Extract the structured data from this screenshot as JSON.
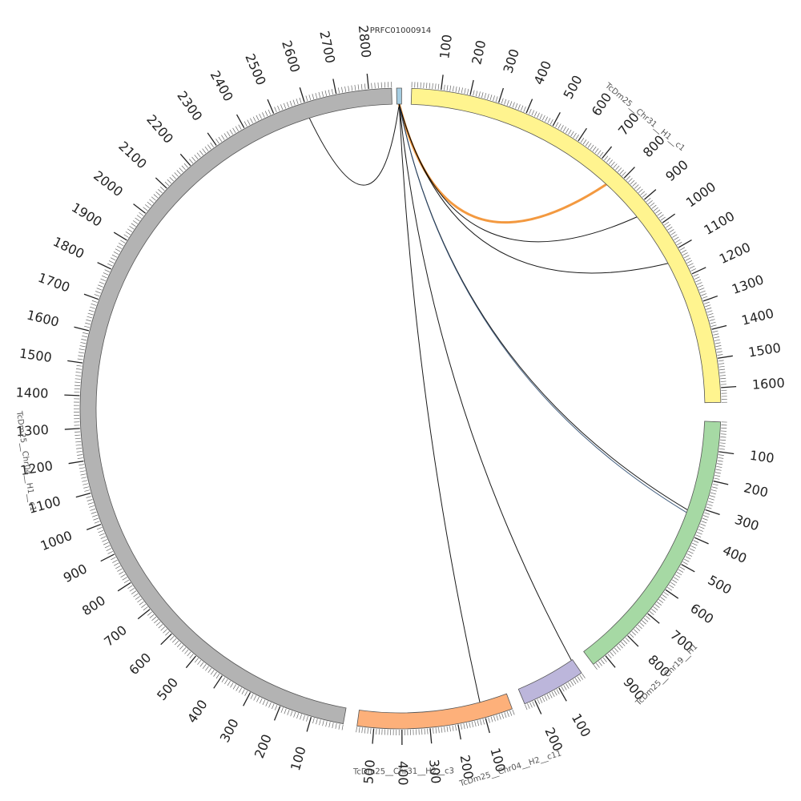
{
  "diagram": {
    "type": "circos",
    "segments": [
      {
        "id": "PRFC",
        "name": "PRFC01000914",
        "length": 30,
        "color": "#a6cee3",
        "ticks": []
      },
      {
        "id": "c31h1",
        "name": "TcDm25__Chr31__H1__c1",
        "length": 1650,
        "color": "#fff48f",
        "ticks": [
          "100",
          "200",
          "300",
          "400",
          "500",
          "600",
          "700",
          "800",
          "900",
          "1000",
          "1100",
          "1200",
          "1300",
          "1400",
          "1500",
          "1600"
        ]
      },
      {
        "id": "c19h1",
        "name": "TcDm25__Chr19__H1",
        "length": 950,
        "color": "#a6d9a4",
        "ticks": [
          "100",
          "200",
          "300",
          "400",
          "500",
          "600",
          "700",
          "800",
          "900"
        ]
      },
      {
        "id": "c04h2",
        "name": "TcDm25__Chr04__H2__c11",
        "length": 240,
        "color": "#bcb6db",
        "ticks": [
          "100",
          "200"
        ]
      },
      {
        "id": "c31h2",
        "name": "TcDm25__Chr31__H2__c3",
        "length": 560,
        "color": "#fdb07a",
        "ticks": [
          "100",
          "200",
          "300",
          "400",
          "500"
        ]
      },
      {
        "id": "c04h1",
        "name": "TcDm25__Chr04__H1__c1",
        "length": 2870,
        "color": "#b3b3b3",
        "ticks": [
          "100",
          "200",
          "300",
          "400",
          "500",
          "600",
          "700",
          "800",
          "900",
          "1000",
          "1100",
          "1200",
          "1300",
          "1400",
          "1500",
          "1600",
          "1700",
          "1800",
          "1900",
          "2000",
          "2100",
          "2200",
          "2300",
          "2400",
          "2500",
          "2600",
          "2700",
          "2800"
        ]
      }
    ],
    "links": [
      {
        "from": "PRFC",
        "to": "c04h1",
        "to_pos": 2600,
        "color": "#000000",
        "width": 1
      },
      {
        "from": "PRFC",
        "to": "c31h1",
        "to_pos": 770,
        "color": "#f28e2b",
        "width": 3
      },
      {
        "from": "PRFC",
        "to": "c31h1",
        "to_pos": 930,
        "color": "#000000",
        "width": 1
      },
      {
        "from": "PRFC",
        "to": "c31h1",
        "to_pos": 1130,
        "color": "#000000",
        "width": 1
      },
      {
        "from": "PRFC",
        "to": "c19h1",
        "to_pos": 320,
        "color": "#000000",
        "width": 1
      },
      {
        "from": "PRFC",
        "to": "c19h1",
        "to_pos": 330,
        "color": "#2b4a6f",
        "width": 1
      },
      {
        "from": "PRFC",
        "to": "c04h2",
        "to_pos": 5,
        "color": "#000000",
        "width": 1
      },
      {
        "from": "PRFC",
        "to": "c31h2",
        "to_pos": 105,
        "color": "#000000",
        "width": 1
      }
    ]
  }
}
